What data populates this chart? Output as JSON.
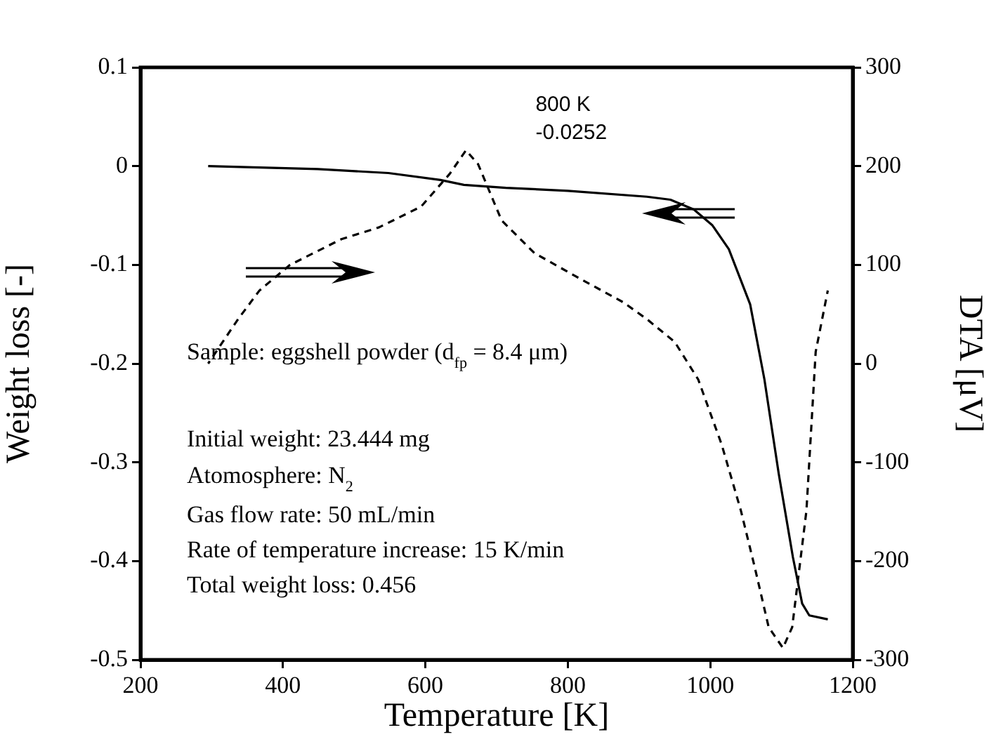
{
  "chart_data": {
    "type": "line",
    "xlabel": "Temperature [K]",
    "ylabel": "Weight loss [-]",
    "y2label": "DTA [μV]",
    "marker": "none",
    "xlim": [
      200,
      1200
    ],
    "xticks": [
      200,
      400,
      600,
      800,
      1000,
      1200
    ],
    "ylim": [
      -0.5,
      0.1
    ],
    "yticks": [
      -0.5,
      -0.4,
      -0.3,
      -0.2,
      -0.1,
      0,
      0.1
    ],
    "y2lim": [
      -300,
      300
    ],
    "y2ticks": [
      -300,
      -200,
      -100,
      0,
      100,
      200,
      300
    ],
    "series": [
      {
        "color": "#000000",
        "line_style": "solid",
        "axis": "y",
        "x": [
          295,
          449,
          548,
          621,
          654,
          713,
          800,
          911,
          944,
          977,
          1003,
          1026,
          1056,
          1076,
          1096,
          1116,
          1129,
          1139,
          1165
        ],
        "values": [
          0,
          -0.003,
          -0.007,
          -0.014,
          -0.019,
          -0.022,
          -0.025,
          -0.031,
          -0.034,
          -0.044,
          -0.06,
          -0.084,
          -0.14,
          -0.216,
          -0.311,
          -0.396,
          -0.443,
          -0.455,
          -0.459
        ]
      },
      {
        "color": "#000000",
        "line_style": "dashed",
        "axis": "y2",
        "x": [
          295,
          337,
          367,
          410,
          482,
          535,
          594,
          634,
          657,
          674,
          707,
          753,
          812,
          878,
          911,
          950,
          983,
          1016,
          1043,
          1062,
          1082,
          1102,
          1115,
          1135,
          1148,
          1165
        ],
        "values": [
          0,
          45,
          74,
          100,
          126,
          138,
          159,
          192,
          216,
          202,
          145,
          112,
          88,
          62,
          45,
          22,
          -16,
          -82,
          -149,
          -205,
          -267,
          -288,
          -267,
          -149,
          12,
          74
        ]
      }
    ],
    "annotations": [
      {
        "text": "800 K\n-0.0252",
        "x": 800,
        "y": -0.0252
      },
      "Sample: eggshell powder (d$_{fp}$ = 8.4 μm)",
      "Initial weight: 23.444 mg",
      "Atomosphere: N$_{2}$",
      "Gas flow rate: 50 mL/min",
      "Rate of temperature increase: 15 K/min",
      "Total weight loss: 0.456"
    ]
  }
}
